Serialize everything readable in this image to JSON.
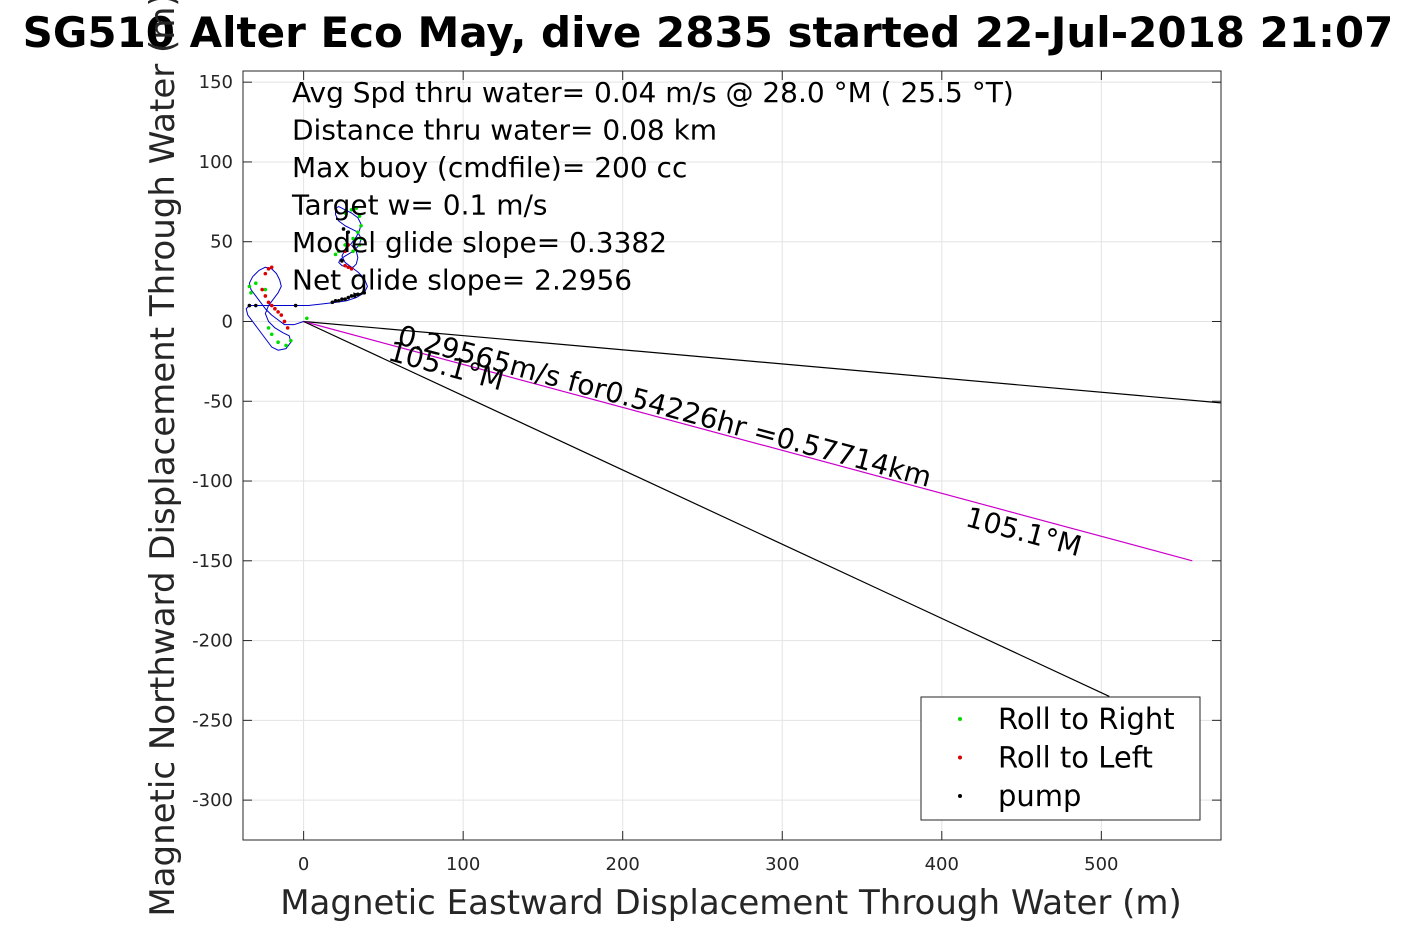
{
  "chart_data": {
    "type": "line",
    "title": "SG510 Alter Eco May, dive 2835 started 22-Jul-2018 21:07",
    "xlabel": "Magnetic Eastward Displacement Through Water (m)",
    "ylabel": "Magnetic Northward Displacement Through Water (m)",
    "xlim": [
      -38,
      575
    ],
    "ylim": [
      -325,
      157
    ],
    "xticks": [
      0,
      100,
      200,
      300,
      400,
      500
    ],
    "yticks": [
      150,
      100,
      50,
      0,
      -50,
      -100,
      -150,
      -200,
      -250,
      -300
    ],
    "grid": true,
    "legend_position": "bottom-right",
    "stats": [
      "Avg Spd thru water=  0.04 m/s @  28.0 °M ( 25.5 °T)",
      "Distance thru water=  0.08 km",
      "Max buoy (cmdfile)= 200 cc",
      "Target w= 0.1 m/s",
      "Model glide slope= 0.3382",
      "Net glide slope= 2.2956"
    ],
    "annotations": [
      {
        "text": "0.29565m/s for0.54226hr =0.57714km",
        "x": 58,
        "y": -14
      },
      {
        "text": "105.1°M",
        "x": 52,
        "y": -24
      },
      {
        "text": "105.1°M",
        "x": 414,
        "y": -128
      }
    ],
    "lines": [
      {
        "name": "upper bound",
        "color": "#000000",
        "x": [
          0,
          575
        ],
        "y": [
          0,
          -51
        ]
      },
      {
        "name": "mean course",
        "color": "#cc00cc",
        "x": [
          0,
          557
        ],
        "y": [
          0,
          -150
        ]
      },
      {
        "name": "lower bound",
        "color": "#000000",
        "x": [
          0,
          505
        ],
        "y": [
          0,
          -235
        ]
      }
    ],
    "track": {
      "color": "#0000cc",
      "x": [
        0,
        -6,
        -12,
        -16,
        -20,
        -24,
        -27,
        -30,
        -33,
        -34,
        -32,
        -28,
        -24,
        -20,
        -17,
        -15,
        -14,
        -16,
        -19,
        -22,
        -24,
        -22,
        -18,
        -13,
        -9,
        -8,
        -11,
        -16,
        -20,
        -23,
        -26,
        -29,
        -32,
        -35,
        -36,
        -34,
        -30,
        -24,
        -18,
        -12,
        -5,
        3,
        12,
        20,
        27,
        33,
        38,
        40,
        38,
        34,
        30,
        26,
        24,
        26,
        30,
        33,
        35,
        36,
        34,
        30,
        26,
        22,
        20,
        20,
        22,
        26,
        30,
        34,
        36,
        35,
        31,
        26,
        23,
        22,
        24,
        28,
        31,
        33,
        34,
        33,
        30
      ],
      "y": [
        0,
        -2,
        -2,
        1,
        4,
        8,
        12,
        16,
        20,
        24,
        28,
        32,
        34,
        33,
        30,
        26,
        22,
        18,
        14,
        10,
        5,
        0,
        -4,
        -7,
        -9,
        -13,
        -17,
        -18,
        -16,
        -12,
        -8,
        -4,
        0,
        4,
        8,
        10,
        10,
        10,
        10,
        10,
        10,
        10,
        11,
        12,
        13,
        15,
        18,
        22,
        27,
        31,
        34,
        37,
        41,
        45,
        49,
        53,
        57,
        61,
        65,
        68,
        70,
        72,
        71,
        67,
        63,
        60,
        58,
        56,
        52,
        48,
        44,
        41,
        39,
        37,
        35,
        34,
        34,
        36,
        40,
        44,
        48
      ]
    },
    "series": [
      {
        "name": "Roll to Right",
        "color": "#00dd00",
        "x": [
          -33,
          -34,
          -30,
          -24,
          -22,
          -20,
          -16,
          -11,
          -8,
          26,
          30,
          33,
          35,
          36,
          34,
          31,
          26,
          22,
          20,
          36,
          35,
          31,
          2
        ],
        "y": [
          18,
          22,
          24,
          20,
          -4,
          -8,
          -13,
          -15,
          -12,
          68,
          70,
          71,
          66,
          60,
          56,
          52,
          48,
          44,
          42,
          52,
          48,
          44,
          2
        ]
      },
      {
        "name": "Roll to Left",
        "color": "#dd0000",
        "x": [
          -26,
          -24,
          -22,
          -20,
          -18,
          -16,
          -14,
          -12,
          -10,
          -24,
          -22,
          -20,
          24,
          26,
          28,
          30,
          26,
          28
        ],
        "y": [
          20,
          16,
          12,
          10,
          8,
          6,
          4,
          0,
          -4,
          30,
          33,
          34,
          38,
          35,
          34,
          33,
          44,
          48
        ]
      },
      {
        "name": "pump",
        "color": "#000000",
        "x": [
          -34,
          -30,
          -5,
          18,
          20,
          22,
          24,
          26,
          28,
          30,
          32,
          34,
          38,
          25,
          28,
          24
        ],
        "y": [
          10,
          10,
          10,
          12,
          13,
          13,
          14,
          14,
          15,
          16,
          16,
          17,
          18,
          58,
          56,
          38
        ]
      }
    ]
  }
}
